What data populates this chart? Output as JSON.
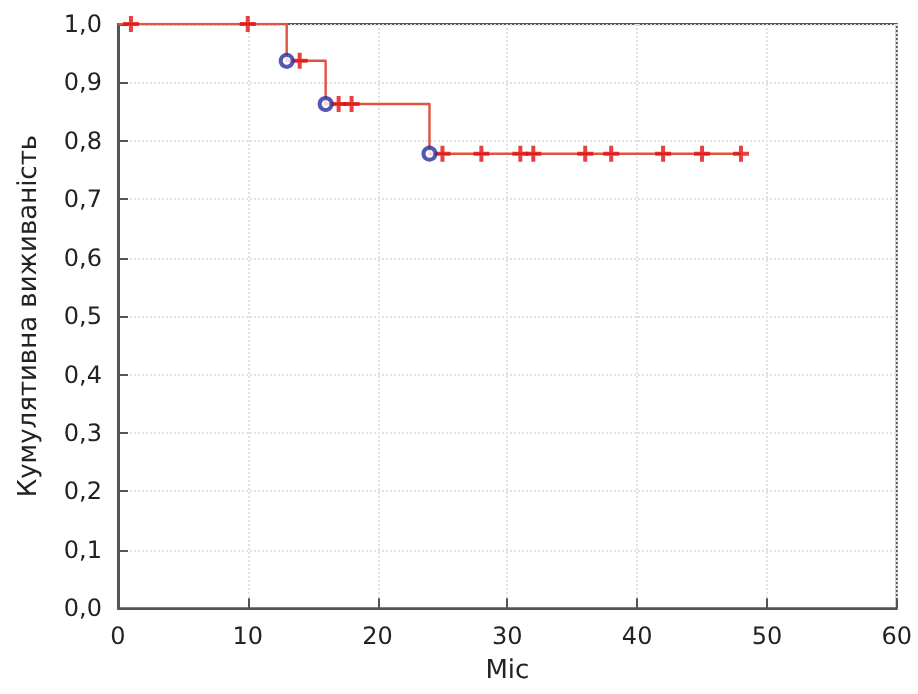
{
  "chart_data": {
    "type": "step",
    "xlabel": "Міс",
    "ylabel": "Кумулятивна виживаність",
    "series": [
      {
        "type": "step",
        "color": "#e0533f",
        "marker": "none",
        "x": [
          0,
          13,
          16,
          24,
          48
        ],
        "values": [
          1.0,
          0.937,
          0.863,
          0.778,
          0.778
        ]
      },
      {
        "type": "scatter",
        "color": "#e01010",
        "marker": "cross",
        "x": [
          1,
          10,
          14,
          17,
          18,
          25,
          28,
          31,
          32,
          36,
          38,
          42,
          45,
          48
        ],
        "values": [
          1.0,
          1.0,
          0.937,
          0.863,
          0.863,
          0.778,
          0.778,
          0.778,
          0.778,
          0.778,
          0.778,
          0.778,
          0.778,
          0.778
        ]
      },
      {
        "type": "scatter",
        "color": "#2a2aa0",
        "marker": "circle",
        "x": [
          13,
          16,
          24
        ],
        "values": [
          0.937,
          0.863,
          0.778
        ]
      }
    ],
    "xlim": [
      0,
      60
    ],
    "xticks": [
      0,
      10,
      20,
      30,
      40,
      50,
      60
    ],
    "ylim": [
      0,
      1
    ],
    "yticks": [
      {
        "value": 0,
        "label": "0,0"
      },
      {
        "value": 0.1,
        "label": "0,1"
      },
      {
        "value": 0.2,
        "label": "0,2"
      },
      {
        "value": 0.3,
        "label": "0,3"
      },
      {
        "value": 0.4,
        "label": "0,4"
      },
      {
        "value": 0.5,
        "label": "0,5"
      },
      {
        "value": 0.6,
        "label": "0,6"
      },
      {
        "value": 0.7,
        "label": "0,7"
      },
      {
        "value": 0.8,
        "label": "0,8"
      },
      {
        "value": 0.9,
        "label": "0,9"
      },
      {
        "value": 1,
        "label": "1,0"
      }
    ],
    "grid": true
  }
}
